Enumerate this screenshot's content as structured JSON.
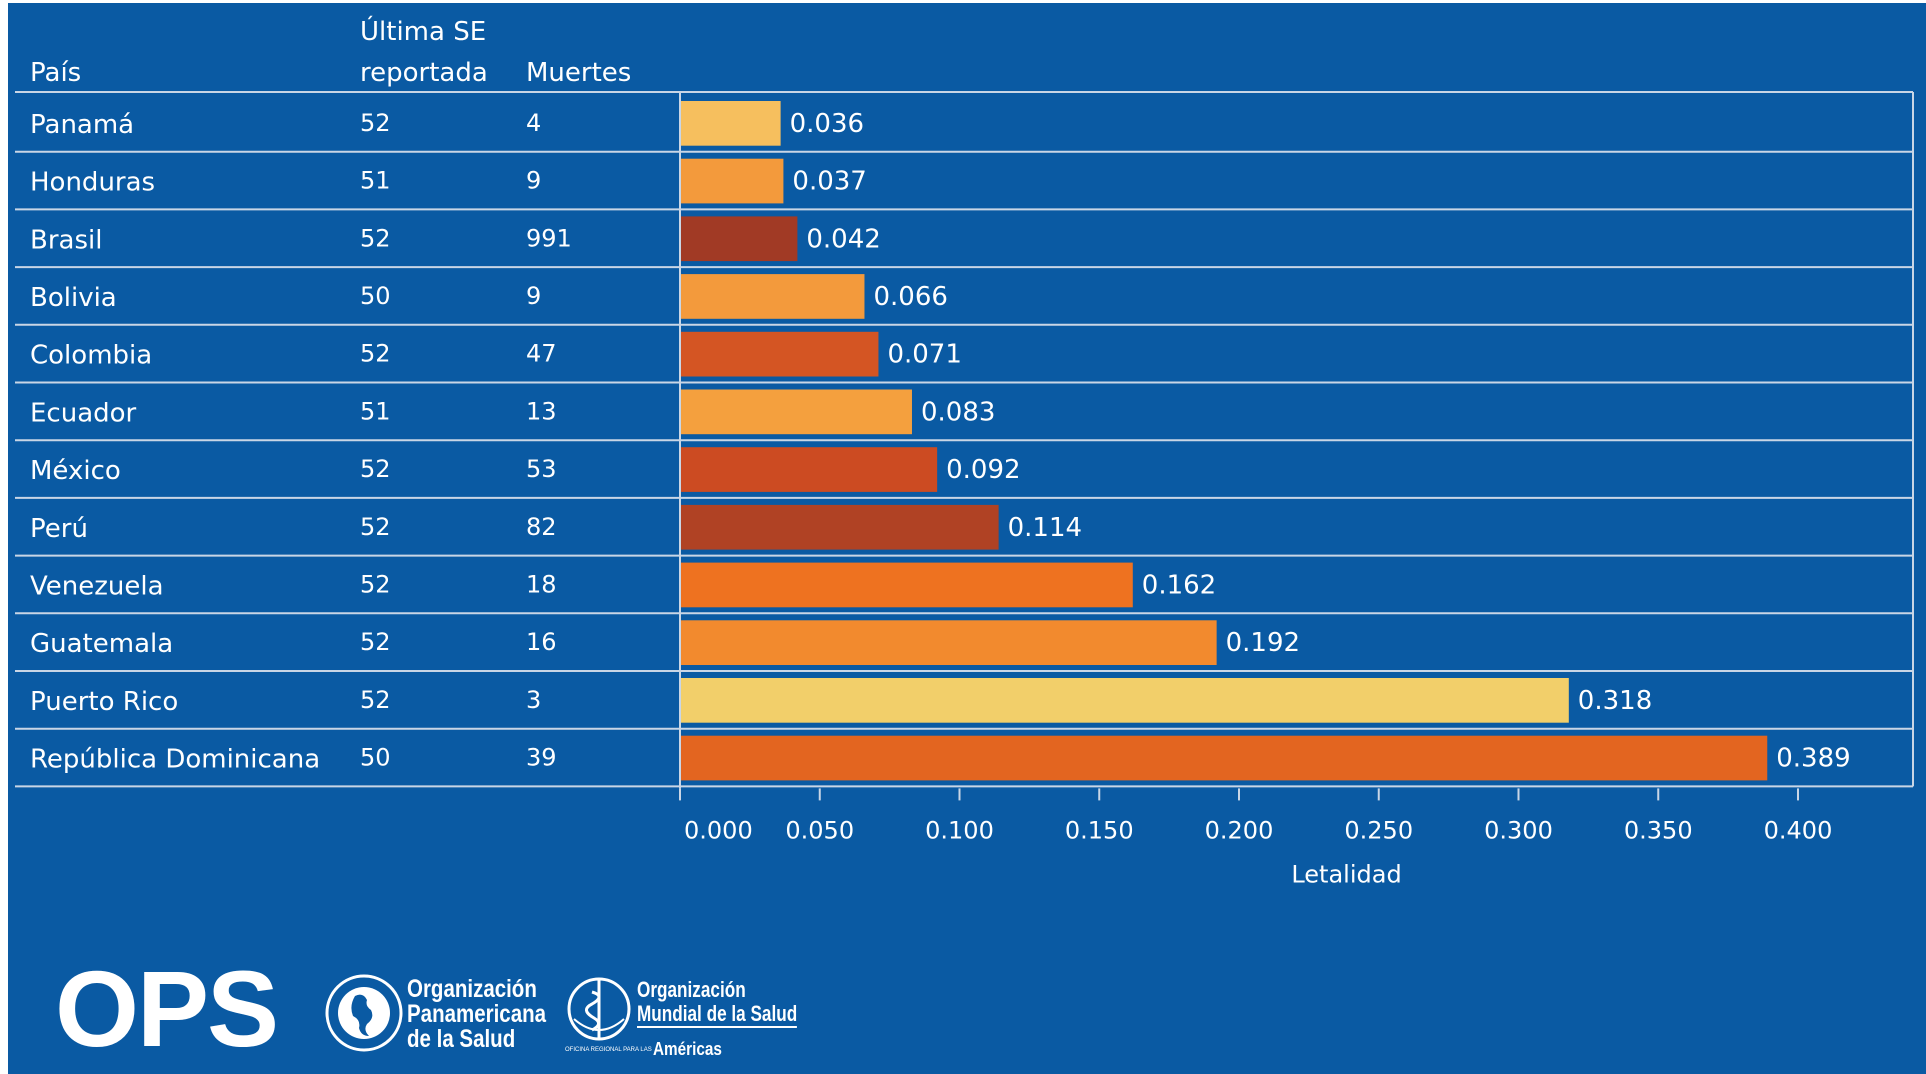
{
  "headers": {
    "country": "País",
    "last_se": [
      "Última SE",
      "reportada"
    ],
    "deaths": "Muertes"
  },
  "colors": {
    "background": "#0a5aa3",
    "text": "#ffffff",
    "gridline": "#c9d6e6"
  },
  "chart_data": {
    "type": "bar",
    "orientation": "horizontal",
    "xlabel": "Letalidad",
    "xlim": [
      0,
      0.4
    ],
    "x_ticks": [
      "0.000",
      "0.050",
      "0.100",
      "0.150",
      "0.200",
      "0.250",
      "0.300",
      "0.350",
      "0.400"
    ],
    "rows": [
      {
        "country": "Panamá",
        "last_se": "52",
        "deaths": "4",
        "value": 0.036,
        "label": "0.036",
        "color": "#f6bf5e"
      },
      {
        "country": "Honduras",
        "last_se": "51",
        "deaths": "9",
        "value": 0.037,
        "label": "0.037",
        "color": "#f39a3c"
      },
      {
        "country": "Brasil",
        "last_se": "52",
        "deaths": "991",
        "value": 0.042,
        "label": "0.042",
        "color": "#a13a25"
      },
      {
        "country": "Bolivia",
        "last_se": "50",
        "deaths": "9",
        "value": 0.066,
        "label": "0.066",
        "color": "#f39a3c"
      },
      {
        "country": "Colombia",
        "last_se": "52",
        "deaths": "47",
        "value": 0.071,
        "label": "0.071",
        "color": "#d45523"
      },
      {
        "country": "Ecuador",
        "last_se": "51",
        "deaths": "13",
        "value": 0.083,
        "label": "0.083",
        "color": "#f4a03e"
      },
      {
        "country": "México",
        "last_se": "52",
        "deaths": "53",
        "value": 0.092,
        "label": "0.092",
        "color": "#cc4b22"
      },
      {
        "country": "Perú",
        "last_se": "52",
        "deaths": "82",
        "value": 0.114,
        "label": "0.114",
        "color": "#b04224"
      },
      {
        "country": "Venezuela",
        "last_se": "52",
        "deaths": "18",
        "value": 0.162,
        "label": "0.162",
        "color": "#ee7220"
      },
      {
        "country": "Guatemala",
        "last_se": "52",
        "deaths": "16",
        "value": 0.192,
        "label": "0.192",
        "color": "#f28a2e"
      },
      {
        "country": "Puerto Rico",
        "last_se": "52",
        "deaths": "3",
        "value": 0.318,
        "label": "0.318",
        "color": "#f2cf6a"
      },
      {
        "country": "República Dominicana",
        "last_se": "50",
        "deaths": "39",
        "value": 0.389,
        "label": "0.389",
        "color": "#e36520"
      }
    ]
  },
  "logos": {
    "ops_letters": "OPS",
    "ops_name": [
      "Organización",
      "Panamericana",
      "de la Salud"
    ],
    "oms_name": [
      "Organización",
      "Mundial de la Salud"
    ],
    "oms_region": "Américas",
    "oms_region_small": "OFICINA REGIONAL PARA LAS"
  }
}
